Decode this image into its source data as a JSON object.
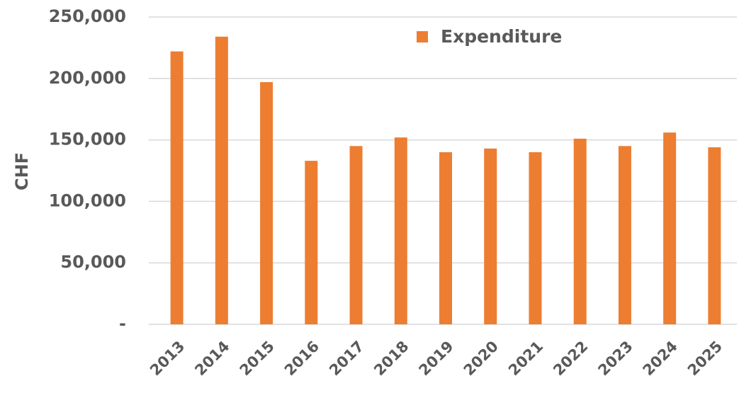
{
  "chart_data": {
    "type": "bar",
    "y_label": "CHF",
    "categories": [
      "2013",
      "2014",
      "2015",
      "2016",
      "2017",
      "2018",
      "2019",
      "2020",
      "2021",
      "2022",
      "2023",
      "2024",
      "2025"
    ],
    "series": [
      {
        "name": "Expenditure",
        "color": "#ed7d31",
        "values": [
          222000,
          234000,
          197000,
          133000,
          145000,
          152000,
          140000,
          143000,
          140000,
          151000,
          145000,
          156000,
          144000
        ]
      }
    ],
    "ylim": [
      0,
      250000
    ],
    "yticks": [
      {
        "value": 0,
        "label": "-"
      },
      {
        "value": 50000,
        "label": "50,000"
      },
      {
        "value": 100000,
        "label": "100,000"
      },
      {
        "value": 150000,
        "label": "150,000"
      },
      {
        "value": 200000,
        "label": "200,000"
      },
      {
        "value": 250000,
        "label": "250,000"
      }
    ],
    "grid": true,
    "legend": "top"
  }
}
